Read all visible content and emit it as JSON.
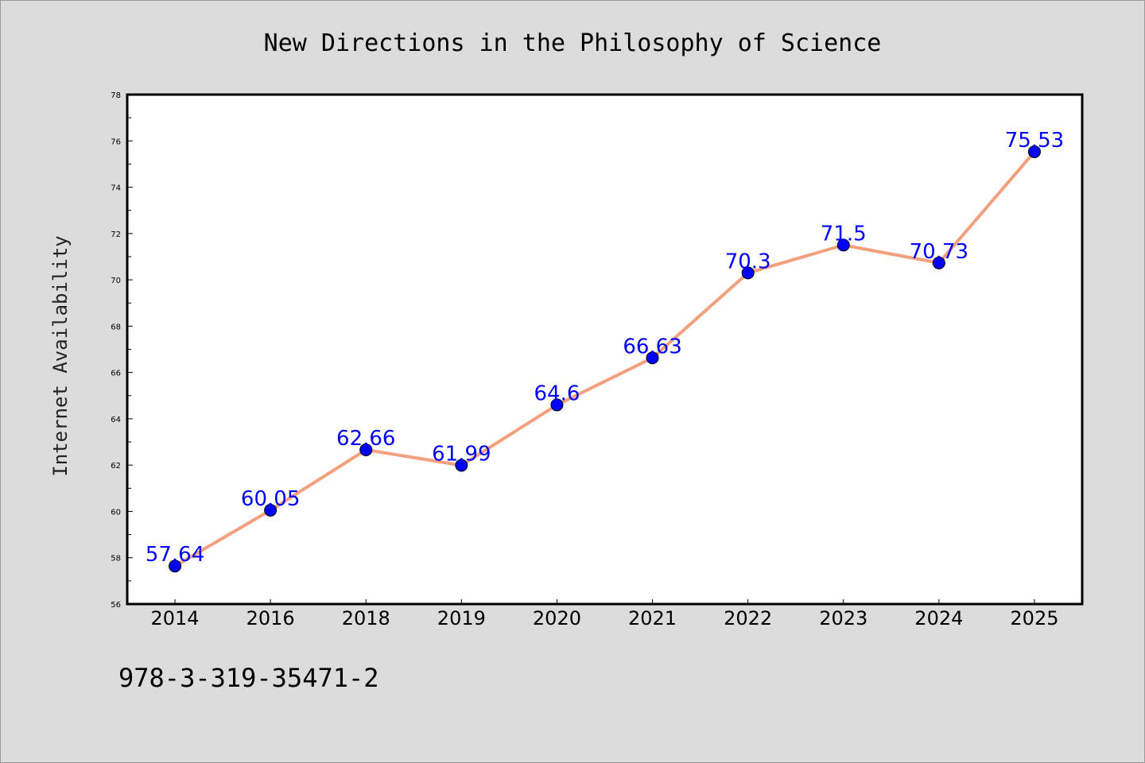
{
  "chart_data": {
    "type": "line",
    "title": "New Directions in the Philosophy of Science",
    "xlabel": "",
    "ylabel": "Internet Availability",
    "categories": [
      "2014",
      "2016",
      "2018",
      "2019",
      "2020",
      "2021",
      "2022",
      "2023",
      "2024",
      "2025"
    ],
    "series": [
      {
        "values": [
          57.64,
          60.05,
          62.66,
          61.99,
          64.6,
          66.63,
          70.3,
          71.5,
          70.73,
          75.53
        ],
        "line_color": "#f4a07f",
        "marker_color": "#0000ff",
        "label_color": "#0000ff"
      }
    ],
    "data_labels": [
      "57.64",
      "60.05",
      "62.66",
      "61.99",
      "64.6",
      "66.63",
      "70.3",
      "71.5",
      "70.73",
      "75.53"
    ],
    "ylim": [
      56,
      78
    ],
    "y_ticks": [
      56,
      58,
      60,
      62,
      64,
      66,
      68,
      70,
      72,
      74,
      76,
      78
    ],
    "grid": false,
    "legend": "none"
  },
  "footer": {
    "isbn": "978-3-319-35471-2"
  },
  "colors": {
    "background": "#dcdcdc",
    "plot_background": "#ffffff",
    "axis": "#000000"
  }
}
